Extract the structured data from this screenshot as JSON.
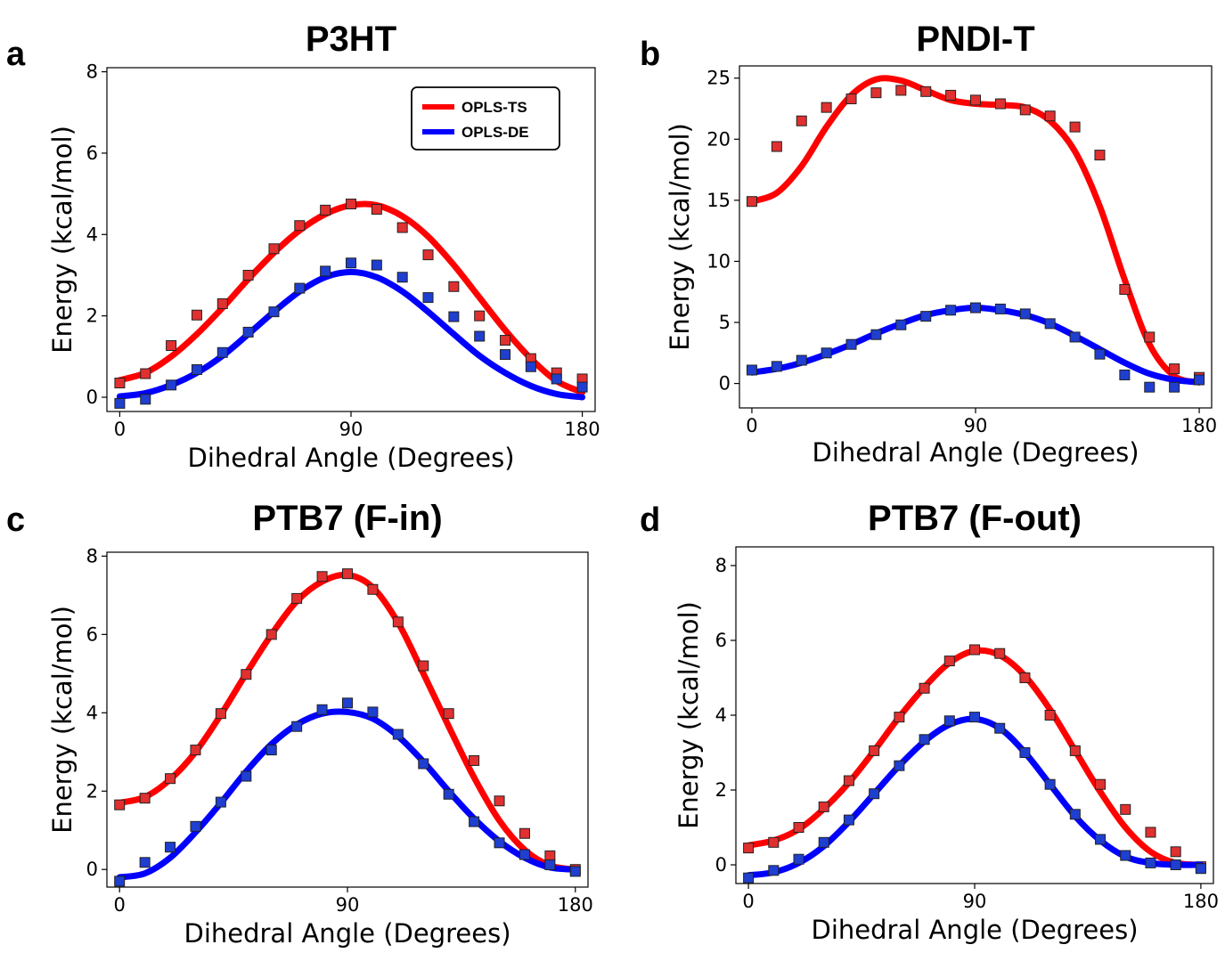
{
  "colors": {
    "ts": "#ff0000",
    "de": "#0000ff",
    "ts_marker": "#e03030",
    "de_marker": "#1f3fd0"
  },
  "legend": {
    "placement": "top-right",
    "panel": "a",
    "ts_label": "OPLS-TS",
    "de_label": "OPLS-DE"
  },
  "chart_data": [
    {
      "id": "a",
      "letter": "a",
      "type": "line",
      "title": "P3HT",
      "xlabel": "Dihedral Angle (Degrees)",
      "ylabel": "Energy (kcal/mol)",
      "xlim": [
        -5,
        185
      ],
      "ylim": [
        -0.35,
        8.1
      ],
      "xticks": [
        0,
        90,
        180
      ],
      "yticks": [
        0,
        2,
        4,
        6,
        8
      ],
      "grid": false,
      "series": [
        {
          "name": "OPLS-TS",
          "color_key": "ts",
          "fit_x": [
            0,
            10,
            20,
            30,
            40,
            50,
            60,
            70,
            80,
            90,
            100,
            110,
            120,
            130,
            140,
            150,
            160,
            170,
            180
          ],
          "fit_y": [
            0.42,
            0.6,
            1.0,
            1.55,
            2.2,
            2.9,
            3.55,
            4.1,
            4.5,
            4.72,
            4.72,
            4.45,
            3.95,
            3.25,
            2.45,
            1.65,
            0.95,
            0.4,
            0.12
          ],
          "points_x": [
            0,
            10,
            20,
            30,
            40,
            50,
            60,
            70,
            80,
            90,
            100,
            110,
            120,
            130,
            140,
            150,
            160,
            170,
            180
          ],
          "points_y": [
            0.35,
            0.58,
            1.27,
            2.02,
            2.3,
            3.0,
            3.65,
            4.22,
            4.6,
            4.75,
            4.62,
            4.17,
            3.5,
            2.72,
            2.0,
            1.4,
            0.95,
            0.6,
            0.45
          ]
        },
        {
          "name": "OPLS-DE",
          "color_key": "de",
          "fit_x": [
            0,
            10,
            20,
            30,
            40,
            50,
            60,
            70,
            80,
            90,
            100,
            110,
            120,
            130,
            140,
            150,
            160,
            170,
            180
          ],
          "fit_y": [
            0.02,
            0.1,
            0.3,
            0.6,
            1.02,
            1.55,
            2.1,
            2.6,
            2.95,
            3.08,
            2.95,
            2.6,
            2.1,
            1.55,
            1.02,
            0.6,
            0.28,
            0.08,
            0.0
          ],
          "points_x": [
            0,
            10,
            20,
            30,
            40,
            50,
            60,
            70,
            80,
            90,
            100,
            110,
            120,
            130,
            140,
            150,
            160,
            170,
            180
          ],
          "points_y": [
            -0.15,
            -0.05,
            0.3,
            0.68,
            1.1,
            1.6,
            2.1,
            2.68,
            3.1,
            3.3,
            3.25,
            2.95,
            2.45,
            1.98,
            1.5,
            1.05,
            0.75,
            0.45,
            0.25
          ]
        }
      ]
    },
    {
      "id": "b",
      "letter": "b",
      "type": "line",
      "title": "PNDI-T",
      "xlabel": "Dihedral Angle (Degrees)",
      "ylabel": "Energy (kcal/mol)",
      "xlim": [
        -5,
        185
      ],
      "ylim": [
        -2.0,
        26.0
      ],
      "xticks": [
        0,
        90,
        180
      ],
      "yticks": [
        0,
        5,
        10,
        15,
        20,
        25
      ],
      "grid": false,
      "series": [
        {
          "name": "OPLS-TS",
          "color_key": "ts",
          "fit_x": [
            0,
            10,
            20,
            30,
            40,
            50,
            60,
            70,
            80,
            90,
            100,
            110,
            120,
            130,
            140,
            150,
            160,
            170,
            180
          ],
          "fit_y": [
            14.9,
            15.6,
            17.8,
            21.0,
            23.6,
            24.9,
            24.8,
            24.0,
            23.2,
            22.9,
            22.8,
            22.6,
            21.5,
            19.0,
            14.5,
            8.5,
            3.2,
            0.6,
            0.1
          ],
          "points_x": [
            0,
            10,
            20,
            30,
            40,
            50,
            60,
            70,
            80,
            90,
            100,
            110,
            120,
            130,
            140,
            150,
            160,
            170,
            180
          ],
          "points_y": [
            14.9,
            19.4,
            21.5,
            22.6,
            23.3,
            23.8,
            24.0,
            23.9,
            23.6,
            23.2,
            22.9,
            22.4,
            21.9,
            21.0,
            18.7,
            7.7,
            3.8,
            1.2,
            0.5
          ]
        },
        {
          "name": "OPLS-DE",
          "color_key": "de",
          "fit_x": [
            0,
            10,
            20,
            30,
            40,
            50,
            60,
            70,
            80,
            90,
            100,
            110,
            120,
            130,
            140,
            150,
            160,
            170,
            180
          ],
          "fit_y": [
            0.9,
            1.2,
            1.7,
            2.4,
            3.2,
            4.1,
            4.9,
            5.6,
            6.0,
            6.2,
            6.0,
            5.6,
            4.9,
            3.9,
            2.8,
            1.7,
            0.8,
            0.3,
            0.1
          ],
          "points_x": [
            0,
            10,
            20,
            30,
            40,
            50,
            60,
            70,
            80,
            90,
            100,
            110,
            120,
            130,
            140,
            150,
            160,
            170,
            180
          ],
          "points_y": [
            1.1,
            1.4,
            1.9,
            2.5,
            3.2,
            4.0,
            4.8,
            5.5,
            6.0,
            6.2,
            6.1,
            5.7,
            4.9,
            3.8,
            2.4,
            0.7,
            -0.3,
            -0.3,
            0.3
          ]
        }
      ]
    },
    {
      "id": "c",
      "letter": "c",
      "type": "line",
      "title": "PTB7 (F-in)",
      "xlabel": "Dihedral Angle (Degrees)",
      "ylabel": "Energy (kcal/mol)",
      "xlim": [
        -5,
        185
      ],
      "ylim": [
        -0.45,
        8.1
      ],
      "xticks": [
        0,
        90,
        180
      ],
      "yticks": [
        0,
        2,
        4,
        6,
        8
      ],
      "grid": false,
      "series": [
        {
          "name": "OPLS-TS",
          "color_key": "ts",
          "fit_x": [
            0,
            10,
            20,
            30,
            40,
            50,
            60,
            70,
            80,
            90,
            100,
            110,
            120,
            130,
            140,
            150,
            160,
            170,
            180
          ],
          "fit_y": [
            1.7,
            1.85,
            2.3,
            3.0,
            3.95,
            5.0,
            6.0,
            6.85,
            7.35,
            7.52,
            7.2,
            6.3,
            5.0,
            3.65,
            2.35,
            1.25,
            0.5,
            0.1,
            0.0
          ],
          "points_x": [
            0,
            10,
            20,
            30,
            40,
            50,
            60,
            70,
            80,
            90,
            100,
            110,
            120,
            130,
            140,
            150,
            160,
            170,
            180
          ],
          "points_y": [
            1.65,
            1.82,
            2.32,
            3.05,
            3.98,
            4.98,
            6.0,
            6.92,
            7.48,
            7.55,
            7.15,
            6.32,
            5.2,
            3.98,
            2.78,
            1.75,
            0.92,
            0.35,
            0.0
          ]
        },
        {
          "name": "OPLS-DE",
          "color_key": "de",
          "fit_x": [
            0,
            10,
            20,
            30,
            40,
            50,
            60,
            70,
            80,
            90,
            100,
            110,
            120,
            130,
            140,
            150,
            160,
            170,
            180
          ],
          "fit_y": [
            -0.2,
            -0.1,
            0.3,
            0.95,
            1.7,
            2.5,
            3.2,
            3.7,
            3.98,
            4.02,
            3.85,
            3.4,
            2.75,
            2.0,
            1.3,
            0.72,
            0.3,
            0.05,
            0.0
          ],
          "points_x": [
            0,
            10,
            20,
            30,
            40,
            50,
            60,
            70,
            80,
            90,
            100,
            110,
            120,
            130,
            140,
            150,
            160,
            170,
            180
          ],
          "points_y": [
            -0.3,
            0.18,
            0.57,
            1.1,
            1.72,
            2.38,
            3.05,
            3.65,
            4.08,
            4.25,
            4.02,
            3.45,
            2.7,
            1.92,
            1.22,
            0.68,
            0.38,
            0.12,
            -0.05
          ]
        }
      ]
    },
    {
      "id": "d",
      "letter": "d",
      "type": "line",
      "title": "PTB7 (F-out)",
      "xlabel": "Dihedral Angle (Degrees)",
      "ylabel": "Energy (kcal/mol)",
      "xlim": [
        -5,
        185
      ],
      "ylim": [
        -0.5,
        8.5
      ],
      "xticks": [
        0,
        90,
        180
      ],
      "yticks": [
        0,
        2,
        4,
        6,
        8
      ],
      "grid": false,
      "series": [
        {
          "name": "OPLS-TS",
          "color_key": "ts",
          "fit_x": [
            0,
            10,
            20,
            30,
            40,
            50,
            60,
            70,
            80,
            90,
            100,
            110,
            120,
            130,
            140,
            150,
            160,
            170,
            180
          ],
          "fit_y": [
            0.52,
            0.65,
            0.95,
            1.5,
            2.2,
            3.05,
            3.95,
            4.75,
            5.4,
            5.72,
            5.6,
            5.05,
            4.15,
            3.05,
            1.95,
            1.0,
            0.35,
            0.05,
            0.0
          ],
          "points_x": [
            0,
            10,
            20,
            30,
            40,
            50,
            60,
            70,
            80,
            90,
            100,
            110,
            120,
            130,
            140,
            150,
            160,
            170,
            180
          ],
          "points_y": [
            0.45,
            0.6,
            1.0,
            1.55,
            2.25,
            3.05,
            3.95,
            4.72,
            5.45,
            5.75,
            5.65,
            5.0,
            4.0,
            3.05,
            2.15,
            1.48,
            0.87,
            0.35,
            -0.05
          ]
        },
        {
          "name": "OPLS-DE",
          "color_key": "de",
          "fit_x": [
            0,
            10,
            20,
            30,
            40,
            50,
            60,
            70,
            80,
            90,
            100,
            110,
            120,
            130,
            140,
            150,
            160,
            170,
            180
          ],
          "fit_y": [
            -0.28,
            -0.2,
            0.05,
            0.5,
            1.15,
            1.9,
            2.65,
            3.3,
            3.75,
            3.9,
            3.65,
            3.0,
            2.15,
            1.3,
            0.65,
            0.22,
            0.05,
            0.0,
            0.0
          ],
          "points_x": [
            0,
            10,
            20,
            30,
            40,
            50,
            60,
            70,
            80,
            90,
            100,
            110,
            120,
            130,
            140,
            150,
            160,
            170,
            180
          ],
          "points_y": [
            -0.35,
            -0.15,
            0.15,
            0.6,
            1.2,
            1.9,
            2.65,
            3.35,
            3.85,
            3.95,
            3.65,
            3.0,
            2.15,
            1.35,
            0.68,
            0.25,
            0.05,
            0.0,
            -0.1
          ]
        }
      ]
    }
  ]
}
